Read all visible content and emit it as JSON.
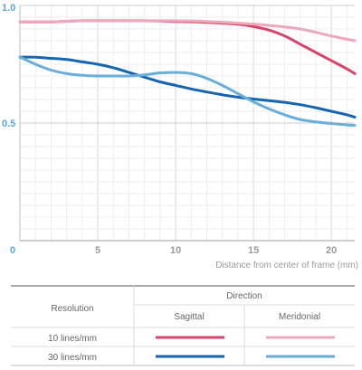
{
  "chart_data": {
    "type": "line",
    "xlabel": "Distance from center of frame (mm)",
    "ylabel": "",
    "xlim": [
      0,
      21.5
    ],
    "ylim": [
      0,
      1.0
    ],
    "xticks": [
      "0",
      "5",
      "10",
      "15",
      "20"
    ],
    "yticks": [
      "0.5",
      "1.0"
    ],
    "grid": true,
    "series": [
      {
        "name": "Sagittal 10 lines/mm",
        "color": "#d6456c",
        "x": [
          0,
          2,
          4,
          6,
          8,
          10,
          12,
          14,
          15,
          16,
          17,
          18,
          19,
          20,
          21,
          21.5
        ],
        "y": [
          0.93,
          0.93,
          0.935,
          0.935,
          0.935,
          0.932,
          0.928,
          0.92,
          0.91,
          0.895,
          0.87,
          0.835,
          0.8,
          0.765,
          0.73,
          0.71
        ]
      },
      {
        "name": "Meridonial 10 lines/mm",
        "color": "#eea8bb",
        "x": [
          0,
          2,
          4,
          6,
          8,
          10,
          12,
          14,
          16,
          18,
          20,
          21.5
        ],
        "y": [
          0.93,
          0.93,
          0.935,
          0.935,
          0.935,
          0.935,
          0.932,
          0.925,
          0.915,
          0.9,
          0.87,
          0.85
        ]
      },
      {
        "name": "Sagittal 30 lines/mm",
        "color": "#1565b0",
        "x": [
          0,
          1,
          2,
          3,
          4,
          5,
          6,
          7,
          8,
          9,
          10,
          11,
          12,
          13,
          14,
          15,
          16,
          17,
          18,
          19,
          20,
          21,
          21.5
        ],
        "y": [
          0.78,
          0.78,
          0.775,
          0.77,
          0.76,
          0.75,
          0.735,
          0.715,
          0.695,
          0.675,
          0.66,
          0.645,
          0.632,
          0.62,
          0.61,
          0.602,
          0.595,
          0.588,
          0.578,
          0.565,
          0.55,
          0.535,
          0.525
        ]
      },
      {
        "name": "Meridonial 30 lines/mm",
        "color": "#6aaedb",
        "x": [
          0,
          1,
          2,
          3,
          4,
          5,
          6,
          7,
          8,
          9,
          10,
          11,
          12,
          13,
          14,
          15,
          16,
          17,
          18,
          19,
          20,
          21,
          21.5
        ],
        "y": [
          0.78,
          0.75,
          0.725,
          0.71,
          0.703,
          0.7,
          0.7,
          0.7,
          0.705,
          0.713,
          0.715,
          0.71,
          0.69,
          0.66,
          0.625,
          0.59,
          0.56,
          0.535,
          0.515,
          0.505,
          0.498,
          0.492,
          0.49
        ]
      }
    ]
  },
  "legend": {
    "direction_header": "Direction",
    "resolution_header": "Resolution",
    "sagittal_label": "Sagittal",
    "meridonial_label": "Meridonial",
    "row_10": "10 lines/mm",
    "row_30": "30 lines/mm"
  }
}
